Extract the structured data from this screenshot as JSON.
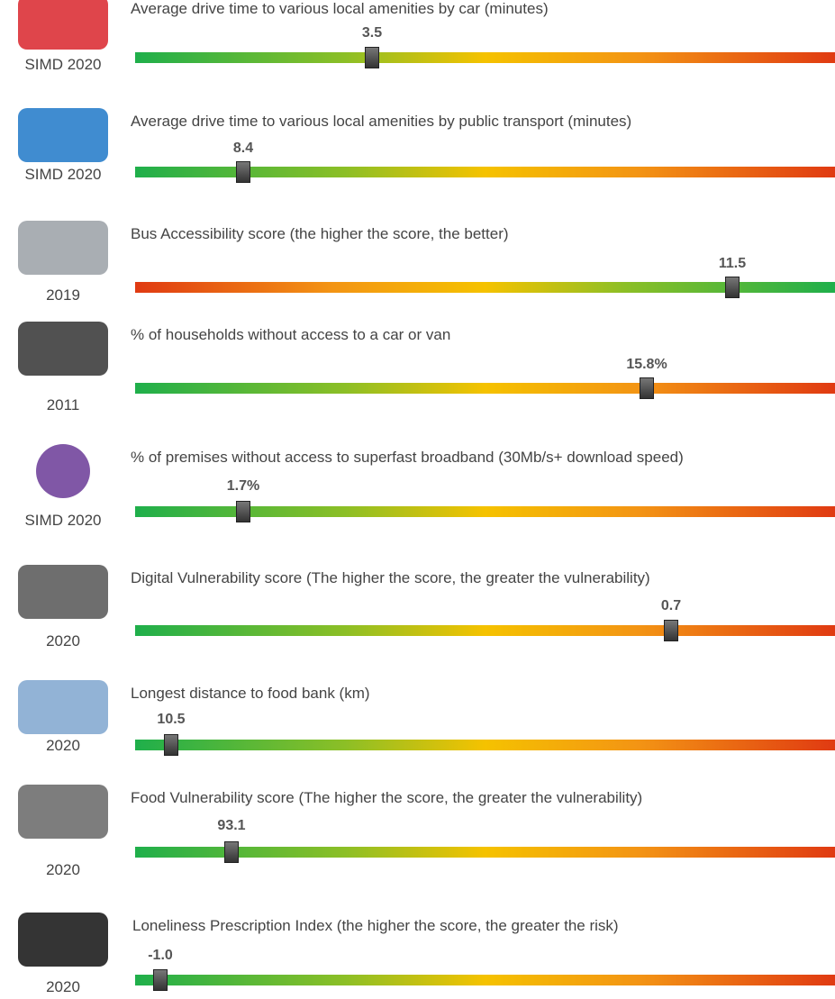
{
  "items": [
    {
      "year": "SIMD 2020",
      "title": "Average drive time to various local amenities by car (minutes)",
      "value": "3.5"
    },
    {
      "year": "SIMD 2020",
      "title": "Average drive time to various local amenities by public transport (minutes)",
      "value": "8.4"
    },
    {
      "year": "2019",
      "title": "Bus Accessibility score (the higher the score, the better)",
      "value": "11.5"
    },
    {
      "year": "2011",
      "title": "% of households without access to a car or van",
      "value": "15.8%"
    },
    {
      "year": "SIMD 2020",
      "title": "% of premises without access to superfast broadband (30Mb/s+ download speed)",
      "value": "1.7%"
    },
    {
      "year": "2020",
      "title": "Digital Vulnerability score (The higher the score, the greater the vulnerability)",
      "value": "0.7"
    },
    {
      "year": "2020",
      "title": "Longest distance to food bank (km)",
      "value": "10.5"
    },
    {
      "year": "2020",
      "title": "Food Vulnerability score (The higher the score, the greater the vulnerability)",
      "value": "93.1"
    },
    {
      "year": "2020",
      "title": "Loneliness Prescription Index (the higher the score, the greater the risk)",
      "value": "-1.0"
    }
  ]
}
